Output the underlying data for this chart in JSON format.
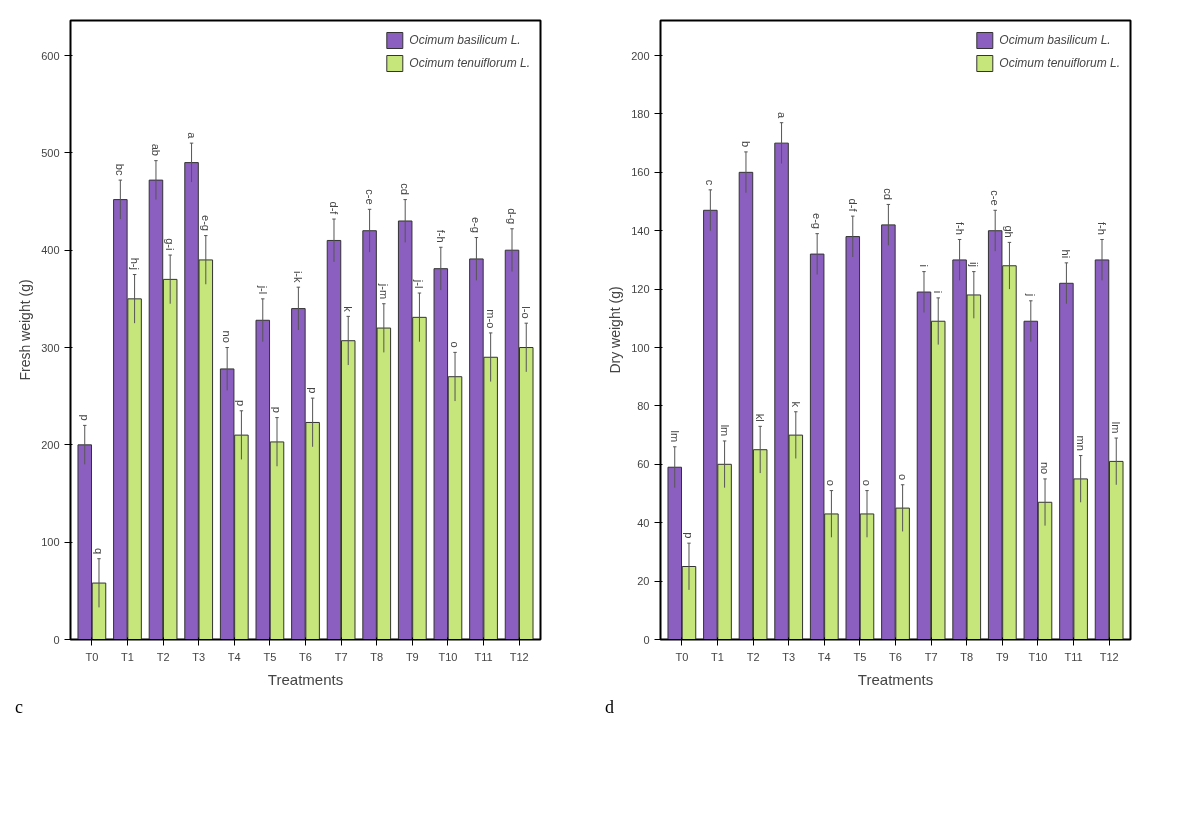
{
  "chart_data": [
    {
      "type": "bar",
      "xlabel": "Treatments",
      "ylabel": "Fresh weight (g)",
      "categories": [
        "T0",
        "T1",
        "T2",
        "T3",
        "T4",
        "T5",
        "T6",
        "T7",
        "T8",
        "T9",
        "T10",
        "T11",
        "T12"
      ],
      "ylim": [
        0,
        600
      ],
      "yticks": [
        0,
        100,
        200,
        300,
        400,
        500,
        600
      ],
      "grid": false,
      "legend": "top right",
      "annotations": [
        "c"
      ],
      "series": [
        {
          "name": "Ocimum basilicum L.",
          "color": "#8b5fbf",
          "values": [
            200,
            452,
            472,
            490,
            278,
            328,
            340,
            410,
            420,
            430,
            381,
            391,
            400
          ],
          "errors": [
            20,
            20,
            20,
            20,
            22,
            22,
            22,
            22,
            22,
            22,
            22,
            22,
            22
          ],
          "value_labels": [
            "p",
            "bc",
            "ab",
            "a",
            "no",
            "j-l",
            "i-k",
            "d-f",
            "c-e",
            "cd",
            "f-h",
            "e-g",
            "d-g"
          ]
        },
        {
          "name": "Ocimum tenuiflorum L.",
          "color": "#c6e57a",
          "values": [
            58,
            350,
            370,
            390,
            210,
            203,
            223,
            307,
            320,
            331,
            270,
            290,
            300
          ],
          "errors": [
            25,
            25,
            25,
            25,
            25,
            25,
            25,
            25,
            25,
            25,
            25,
            25,
            25
          ],
          "value_labels": [
            "q",
            "h-j",
            "g-i",
            "e-g",
            "p",
            "p",
            "p",
            "k",
            "j-m",
            "j-l",
            "o",
            "m-o",
            "l-o"
          ]
        }
      ]
    },
    {
      "type": "bar",
      "xlabel": "Treatments",
      "ylabel": "Dry weight (g)",
      "categories": [
        "T0",
        "T1",
        "T2",
        "T3",
        "T4",
        "T5",
        "T6",
        "T7",
        "T8",
        "T9",
        "T10",
        "T11",
        "T12"
      ],
      "ylim": [
        0,
        200
      ],
      "yticks": [
        0,
        20,
        40,
        60,
        80,
        100,
        120,
        140,
        160,
        180,
        200
      ],
      "grid": false,
      "legend": "top right",
      "annotations": [
        "d"
      ],
      "series": [
        {
          "name": "Ocimum basilicum L.",
          "color": "#8b5fbf",
          "values": [
            59,
            147,
            160,
            170,
            132,
            138,
            142,
            119,
            130,
            140,
            109,
            122,
            130
          ],
          "errors": [
            7,
            7,
            7,
            7,
            7,
            7,
            7,
            7,
            7,
            7,
            7,
            7,
            7
          ],
          "value_labels": [
            "lm",
            "c",
            "b",
            "a",
            "e-g",
            "d-f",
            "cd",
            "i",
            "f-h",
            "c-e",
            "j",
            "hi",
            "f-h"
          ]
        },
        {
          "name": "Ocimum tenuiflorum L.",
          "color": "#c6e57a",
          "values": [
            25,
            60,
            65,
            70,
            43,
            43,
            45,
            109,
            118,
            128,
            47,
            55,
            61
          ],
          "errors": [
            8,
            8,
            8,
            8,
            8,
            8,
            8,
            8,
            8,
            8,
            8,
            8,
            8
          ],
          "value_labels": [
            "p",
            "lm",
            "kl",
            "k",
            "o",
            "o",
            "o",
            "i",
            "ij",
            "gh",
            "no",
            "mn",
            "lm"
          ]
        }
      ]
    }
  ]
}
